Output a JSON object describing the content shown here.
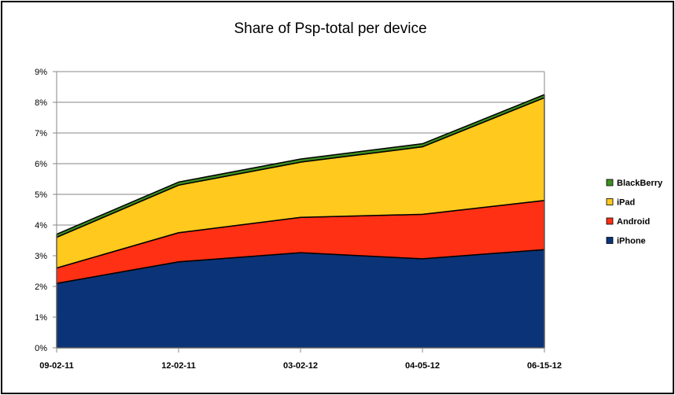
{
  "chart_data": {
    "type": "area",
    "stacked": true,
    "title": "Share of Psp-total per device",
    "xlabel": "",
    "ylabel": "",
    "ylim": [
      0,
      0.09
    ],
    "ytick_labels": [
      "0%",
      "1%",
      "2%",
      "3%",
      "4%",
      "5%",
      "6%",
      "7%",
      "8%",
      "9%"
    ],
    "ytick_values": [
      0,
      0.01,
      0.02,
      0.03,
      0.04,
      0.05,
      0.06,
      0.07,
      0.08,
      0.09
    ],
    "categories": [
      "09-02-11",
      "12-02-11",
      "03-02-12",
      "04-05-12",
      "06-15-12"
    ],
    "grid": "horizontal",
    "legend_position": "right",
    "series": [
      {
        "name": "iPhone",
        "color": "#0B3478",
        "values": [
          0.021,
          0.028,
          0.031,
          0.029,
          0.032
        ]
      },
      {
        "name": "Android",
        "color": "#FF3014",
        "values": [
          0.005,
          0.0095,
          0.0115,
          0.0145,
          0.016
        ]
      },
      {
        "name": "iPad",
        "color": "#FFC91E",
        "values": [
          0.01,
          0.0155,
          0.018,
          0.022,
          0.0335
        ]
      },
      {
        "name": "BlackBerry",
        "color": "#3F8F22",
        "values": [
          0.001,
          0.001,
          0.001,
          0.001,
          0.001
        ]
      }
    ]
  }
}
